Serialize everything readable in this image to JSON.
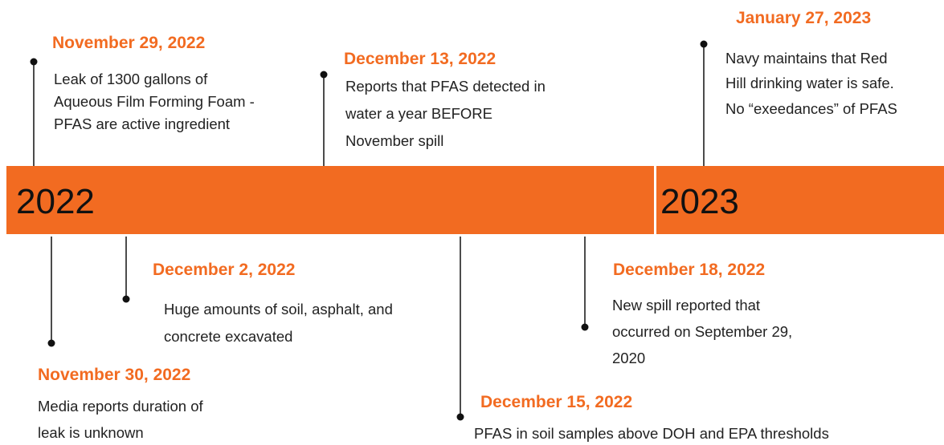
{
  "years": [
    "2022",
    "2023"
  ],
  "events": [
    {
      "date": "November 29, 2022",
      "text": [
        "Leak of 1300 gallons of",
        "Aqueous Film Forming Foam -",
        "PFAS are active ingredient"
      ]
    },
    {
      "date": "December 13, 2022",
      "text": [
        "Reports that PFAS detected in",
        "water a year BEFORE",
        "November spill"
      ]
    },
    {
      "date": "January 27, 2023",
      "text": [
        "Navy maintains that Red",
        "Hill drinking water is safe.",
        "No “exeedances” of PFAS"
      ]
    },
    {
      "date": "December 2, 2022",
      "text": [
        "Huge amounts of soil, asphalt, and",
        "concrete excavated"
      ]
    },
    {
      "date": "November 30, 2022",
      "text": [
        "Media reports duration of",
        "leak is unknown"
      ]
    },
    {
      "date": "December 18, 2022",
      "text": [
        "New spill reported that",
        "occurred on September 29,",
        "2020"
      ]
    },
    {
      "date": "December 15, 2022",
      "text": [
        "PFAS in soil samples above DOH and EPA thresholds"
      ]
    }
  ]
}
